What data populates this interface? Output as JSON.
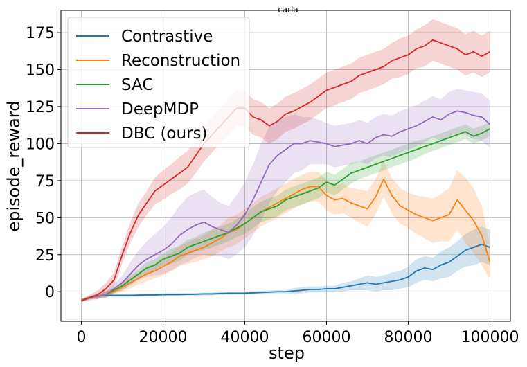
{
  "chart_data": {
    "type": "line",
    "title": "carla",
    "xlabel": "step",
    "ylabel": "episode_reward",
    "xlim": [
      -5000,
      105000
    ],
    "ylim": [
      -20,
      190
    ],
    "xticks": [
      0,
      20000,
      40000,
      60000,
      80000,
      100000
    ],
    "xtick_labels": [
      "0",
      "20000",
      "40000",
      "60000",
      "80000",
      "100000"
    ],
    "yticks": [
      0,
      25,
      50,
      75,
      100,
      125,
      150,
      175
    ],
    "ytick_labels": [
      "0",
      "25",
      "50",
      "75",
      "100",
      "125",
      "150",
      "175"
    ],
    "grid": true,
    "legend_position": "top-left",
    "x": [
      0,
      2000,
      4000,
      6000,
      8000,
      10000,
      12000,
      14000,
      16000,
      18000,
      20000,
      22000,
      24000,
      26000,
      28000,
      30000,
      32000,
      34000,
      36000,
      38000,
      40000,
      42000,
      44000,
      46000,
      48000,
      50000,
      52000,
      54000,
      56000,
      58000,
      60000,
      62000,
      64000,
      66000,
      68000,
      70000,
      72000,
      74000,
      76000,
      78000,
      80000,
      82000,
      84000,
      86000,
      88000,
      90000,
      92000,
      94000,
      96000,
      98000,
      100000
    ],
    "series": [
      {
        "name": "Contrastive",
        "color": "#1f77b4",
        "values": [
          -6,
          -4,
          -3,
          -2.5,
          -2.5,
          -2.5,
          -2.5,
          -2.3,
          -2.2,
          -2.2,
          -2,
          -2,
          -2,
          -1.8,
          -1.7,
          -1.5,
          -1.5,
          -1.2,
          -1,
          -1,
          -1,
          -0.8,
          -0.5,
          -0.3,
          0,
          0,
          0.5,
          1,
          1.5,
          1.5,
          2,
          2,
          3,
          4,
          5,
          6,
          5,
          6,
          7,
          8,
          10,
          14,
          16,
          15,
          18,
          20,
          24,
          28,
          30,
          32,
          30
        ],
        "band": [
          1,
          1,
          1,
          1,
          1,
          1,
          1,
          1,
          1,
          1,
          1,
          1,
          1,
          1,
          1,
          1,
          1,
          1,
          1,
          1,
          1,
          1,
          1,
          1,
          1,
          1,
          2,
          2,
          2,
          2,
          2,
          2,
          3,
          3,
          4,
          5,
          5,
          5,
          6,
          6,
          7,
          8,
          8,
          8,
          9,
          10,
          10,
          11,
          12,
          12,
          12
        ]
      },
      {
        "name": "Reconstruction",
        "color": "#ff7f0e",
        "values": [
          -6,
          -4,
          -3,
          -2,
          0,
          3,
          6,
          9,
          12,
          14,
          17,
          20,
          24,
          26,
          28,
          30,
          33,
          36,
          40,
          42,
          46,
          50,
          54,
          57,
          60,
          63,
          66,
          69,
          71,
          71,
          65,
          62,
          63,
          60,
          58,
          56,
          64,
          76,
          65,
          58,
          55,
          52,
          50,
          48,
          50,
          52,
          62,
          55,
          48,
          38,
          20
        ],
        "band": [
          1,
          1,
          2,
          2,
          2,
          3,
          4,
          4,
          5,
          5,
          6,
          6,
          7,
          7,
          8,
          8,
          9,
          9,
          10,
          10,
          10,
          10,
          10,
          10,
          10,
          10,
          10,
          10,
          10,
          10,
          10,
          10,
          10,
          10,
          11,
          12,
          12,
          12,
          12,
          12,
          12,
          13,
          14,
          15,
          16,
          18,
          20,
          22,
          22,
          20,
          12
        ]
      },
      {
        "name": "SAC",
        "color": "#2ca02c",
        "values": [
          -6,
          -4,
          -3,
          -2,
          1,
          4,
          8,
          12,
          16,
          18,
          22,
          24,
          26,
          30,
          32,
          34,
          36,
          38,
          40,
          43,
          46,
          50,
          54,
          56,
          58,
          62,
          64,
          66,
          68,
          70,
          74,
          72,
          76,
          80,
          82,
          84,
          86,
          88,
          90,
          92,
          94,
          96,
          98,
          100,
          102,
          104,
          106,
          108,
          105,
          107,
          110
        ],
        "band": [
          1,
          1,
          1,
          2,
          2,
          3,
          3,
          3,
          4,
          4,
          4,
          5,
          5,
          5,
          5,
          6,
          6,
          6,
          6,
          6,
          7,
          7,
          7,
          7,
          7,
          7,
          7,
          7,
          7,
          7,
          7,
          7,
          7,
          7,
          6,
          6,
          6,
          6,
          6,
          6,
          6,
          6,
          5,
          5,
          5,
          5,
          5,
          5,
          5,
          5,
          5
        ]
      },
      {
        "name": "DeepMDP",
        "color": "#9467bd",
        "values": [
          -6,
          -4,
          -3,
          -2,
          2,
          6,
          12,
          18,
          22,
          25,
          28,
          32,
          38,
          42,
          45,
          47,
          44,
          42,
          40,
          45,
          52,
          62,
          74,
          86,
          92,
          96,
          100,
          100,
          102,
          101,
          100,
          98,
          99,
          100,
          102,
          100,
          104,
          106,
          105,
          108,
          110,
          112,
          115,
          118,
          116,
          120,
          122,
          121,
          119,
          118,
          113
        ],
        "band": [
          1,
          1,
          2,
          2,
          3,
          5,
          8,
          10,
          12,
          14,
          16,
          18,
          20,
          22,
          22,
          22,
          20,
          18,
          18,
          20,
          22,
          24,
          26,
          26,
          24,
          22,
          20,
          18,
          16,
          15,
          14,
          14,
          14,
          14,
          14,
          14,
          14,
          14,
          14,
          14,
          14,
          14,
          14,
          14,
          14,
          15,
          15,
          15,
          16,
          16,
          16
        ]
      },
      {
        "name": "DBC (ours)",
        "color": "#d62728",
        "values": [
          -6,
          -4,
          -2,
          2,
          8,
          25,
          40,
          52,
          60,
          68,
          72,
          76,
          80,
          84,
          92,
          100,
          106,
          112,
          118,
          124,
          124,
          118,
          116,
          112,
          115,
          120,
          122,
          125,
          128,
          132,
          136,
          138,
          140,
          142,
          146,
          148,
          150,
          152,
          156,
          158,
          160,
          164,
          166,
          170,
          168,
          166,
          164,
          160,
          162,
          159,
          162
        ],
        "band": [
          1,
          2,
          3,
          4,
          5,
          6,
          7,
          8,
          8,
          9,
          10,
          10,
          11,
          11,
          12,
          12,
          12,
          12,
          12,
          12,
          12,
          12,
          12,
          12,
          12,
          12,
          12,
          12,
          12,
          12,
          12,
          12,
          12,
          12,
          12,
          12,
          12,
          12,
          12,
          13,
          13,
          13,
          14,
          14,
          14,
          14,
          14,
          14,
          14,
          14,
          14
        ]
      }
    ]
  }
}
